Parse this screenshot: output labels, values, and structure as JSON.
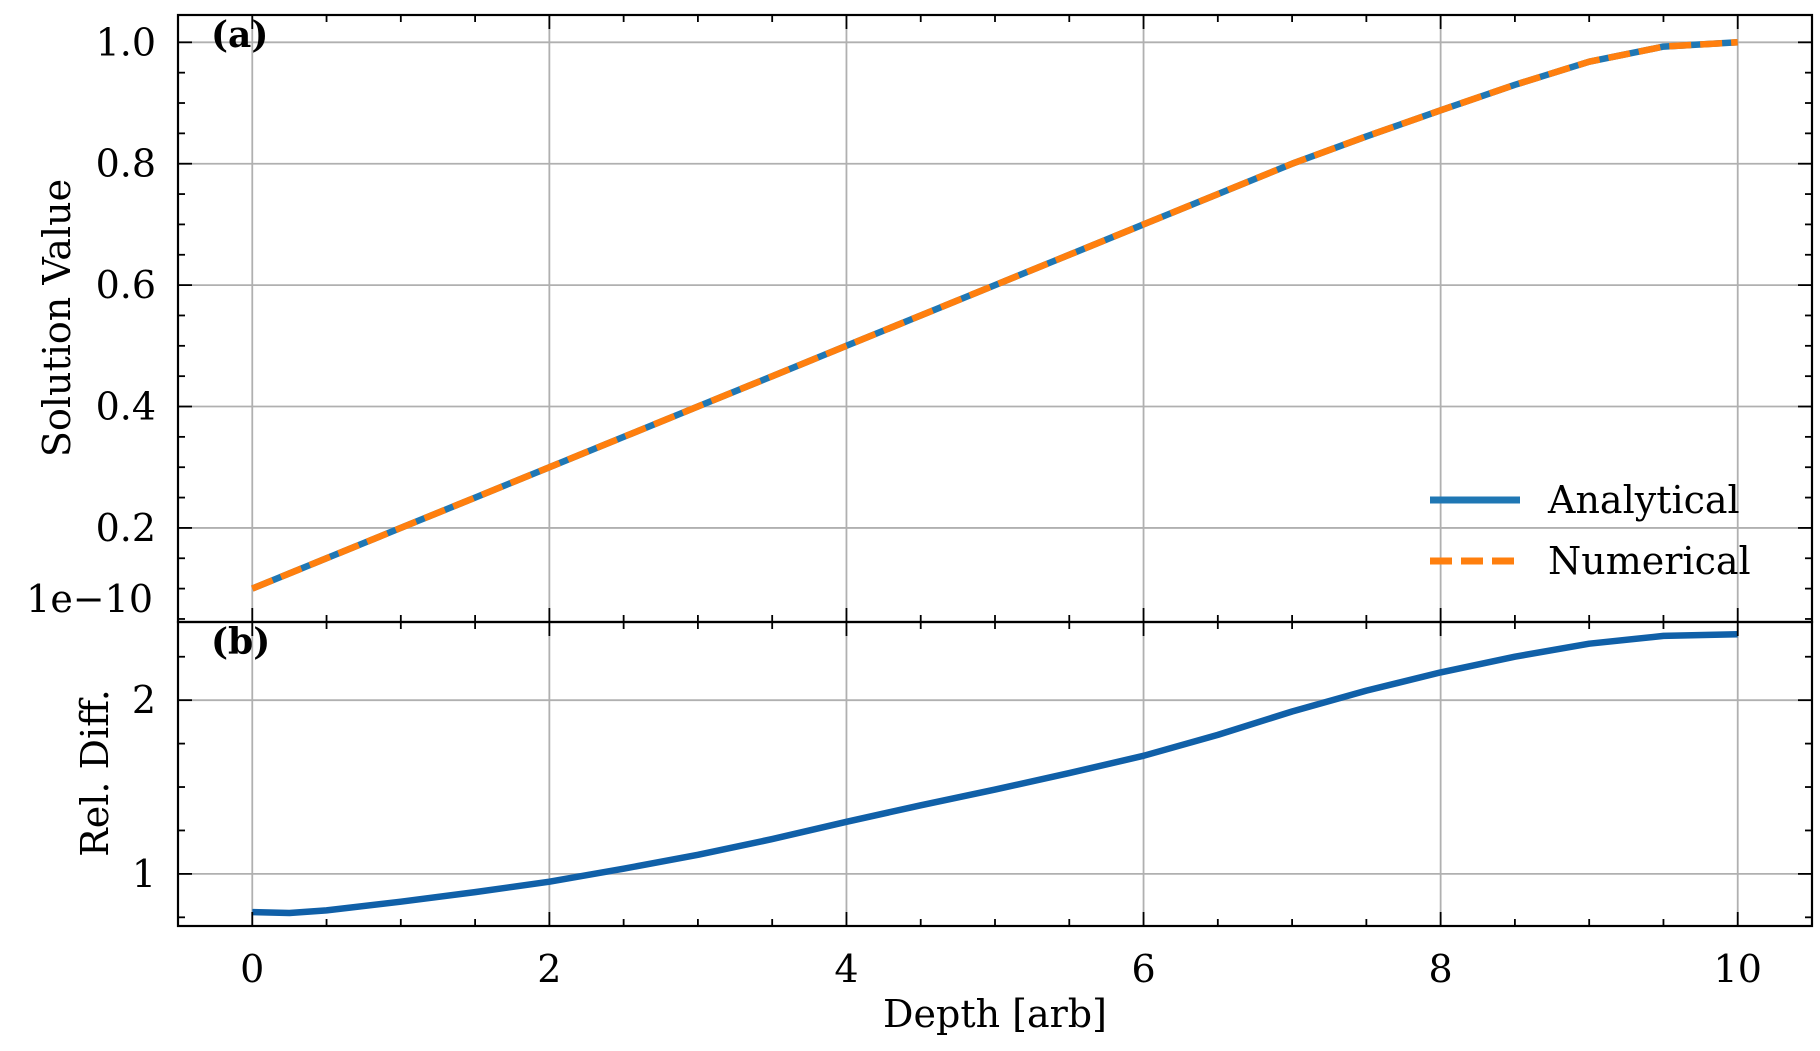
{
  "chart_data": [
    {
      "panel_label": "(a)",
      "type": "line",
      "ylabel": "Solution Value",
      "offset_text": "1e−10",
      "xlim": [
        -0.5,
        10.5
      ],
      "ylim": [
        0.045,
        1.045
      ],
      "xticks": [
        0,
        2,
        4,
        6,
        8,
        10
      ],
      "yticks": [
        0.2,
        0.4,
        0.6,
        0.8,
        1.0
      ],
      "ytick_labels": [
        "0.2",
        "0.4",
        "0.6",
        "0.8",
        "1.0"
      ],
      "grid": true,
      "legend": "lower right",
      "series": [
        {
          "name": "Analytical",
          "color": "#1f77b4",
          "style": "solid",
          "x": [
            0,
            0.5,
            1,
            1.5,
            2,
            2.5,
            3,
            3.5,
            4,
            4.5,
            5,
            5.5,
            6,
            6.5,
            7,
            7.5,
            8,
            8.5,
            9,
            9.5,
            10
          ],
          "values": [
            0.1,
            0.15,
            0.2,
            0.25,
            0.3,
            0.35,
            0.4,
            0.45,
            0.5,
            0.55,
            0.6,
            0.65,
            0.7,
            0.75,
            0.8,
            0.845,
            0.888,
            0.93,
            0.968,
            0.993,
            1.0
          ]
        },
        {
          "name": "Numerical",
          "color": "#ff7f0e",
          "style": "dashed",
          "x": [
            0,
            0.5,
            1,
            1.5,
            2,
            2.5,
            3,
            3.5,
            4,
            4.5,
            5,
            5.5,
            6,
            6.5,
            7,
            7.5,
            8,
            8.5,
            9,
            9.5,
            10
          ],
          "values": [
            0.1,
            0.15,
            0.2,
            0.25,
            0.3,
            0.35,
            0.4,
            0.45,
            0.5,
            0.55,
            0.6,
            0.65,
            0.7,
            0.75,
            0.8,
            0.845,
            0.888,
            0.93,
            0.968,
            0.993,
            1.0
          ]
        }
      ]
    },
    {
      "panel_label": "(b)",
      "type": "line",
      "ylabel": "Rel. Diff.",
      "xlabel": "Depth [arb]",
      "xlim": [
        -0.5,
        10.5
      ],
      "ylim": [
        0.7,
        2.45
      ],
      "xticks": [
        0,
        2,
        4,
        6,
        8,
        10
      ],
      "xtick_labels": [
        "0",
        "2",
        "4",
        "6",
        "8",
        "10"
      ],
      "yticks": [
        1,
        2
      ],
      "ytick_labels": [
        "1",
        "2"
      ],
      "grid": true,
      "series": [
        {
          "color": "#1060a8",
          "style": "solid",
          "x": [
            0,
            0.25,
            0.5,
            1,
            1.5,
            2,
            2.5,
            3,
            3.5,
            4,
            4.5,
            5,
            5.5,
            6,
            6.5,
            7,
            7.5,
            8,
            8.5,
            9,
            9.5,
            10
          ],
          "values": [
            0.78,
            0.775,
            0.79,
            0.84,
            0.895,
            0.955,
            1.03,
            1.11,
            1.2,
            1.3,
            1.395,
            1.485,
            1.58,
            1.68,
            1.8,
            1.935,
            2.055,
            2.16,
            2.25,
            2.325,
            2.37,
            2.38
          ]
        }
      ]
    }
  ]
}
